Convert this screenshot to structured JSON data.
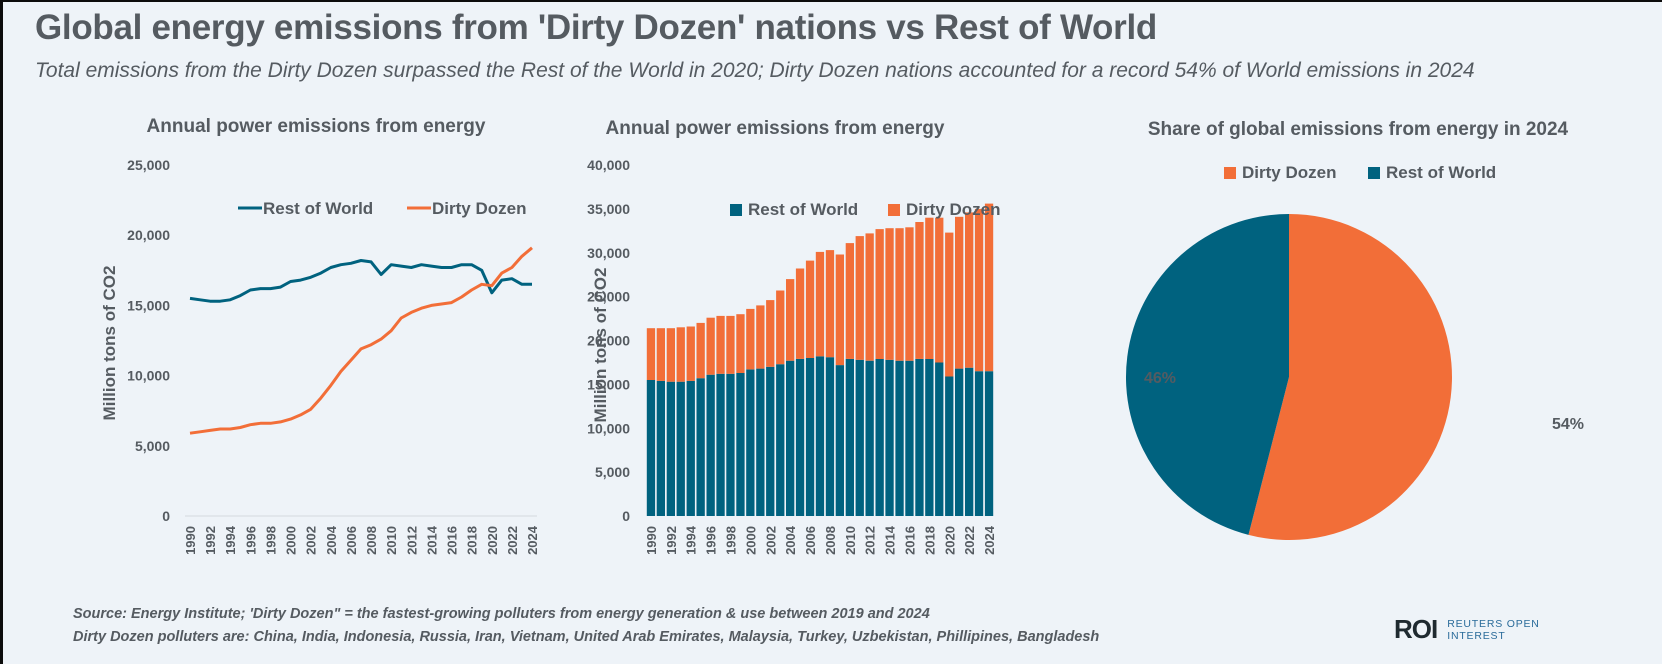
{
  "header": {
    "title": "Global energy emissions from 'Dirty Dozen' nations vs Rest of World",
    "subtitle": "Total emissions from the Dirty Dozen surpassed the Rest of the World in 2020; Dirty Dozen nations accounted for a record 54% of World emissions in 2024"
  },
  "footer": {
    "source": "Source: Energy Institute; 'Dirty Dozen\" = the fastest-growing polluters from energy generation & use between 2019 and 2024",
    "members": "Dirty Dozen polluters are: China, India, Indonesia, Russia, Iran, Vietnam, United Arab Emirates, Malaysia, Turkey, Uzbekistan, Phillipines, Bangladesh",
    "logo_mark": "ROI",
    "logo_line1": "REUTERS OPEN",
    "logo_line2": "INTEREST"
  },
  "colors": {
    "rest_of_world": "#00627f",
    "dirty_dozen": "#f26e38",
    "text": "#555b61",
    "background": "#eef3f8"
  },
  "chart_data": [
    {
      "type": "line",
      "title": "Annual power emissions from energy",
      "xlabel": "",
      "ylabel": "Million tons of CO2",
      "ylim": [
        0,
        25000
      ],
      "yticks": [
        0,
        5000,
        10000,
        15000,
        20000,
        25000
      ],
      "ytick_labels": [
        "0",
        "5,000",
        "10,000",
        "15,000",
        "20,000",
        "25,000"
      ],
      "x": [
        1990,
        1991,
        1992,
        1993,
        1994,
        1995,
        1996,
        1997,
        1998,
        1999,
        2000,
        2001,
        2002,
        2003,
        2004,
        2005,
        2006,
        2007,
        2008,
        2009,
        2010,
        2011,
        2012,
        2013,
        2014,
        2015,
        2016,
        2017,
        2018,
        2019,
        2020,
        2021,
        2022,
        2023,
        2024
      ],
      "xtick_labels": [
        "1990",
        "1992",
        "1994",
        "1996",
        "1998",
        "2000",
        "2002",
        "2004",
        "2006",
        "2008",
        "2010",
        "2012",
        "2014",
        "2016",
        "2018",
        "2020",
        "2022",
        "2024"
      ],
      "legend": "top-center",
      "grid": false,
      "series": [
        {
          "name": "Rest of World",
          "color": "#00627f",
          "values": [
            15500,
            15400,
            15300,
            15300,
            15400,
            15700,
            16100,
            16200,
            16200,
            16300,
            16700,
            16800,
            17000,
            17300,
            17700,
            17900,
            18000,
            18200,
            18100,
            17200,
            17900,
            17800,
            17700,
            17900,
            17800,
            17700,
            17700,
            17900,
            17900,
            17500,
            15900,
            16800,
            16900,
            16500,
            16500
          ]
        },
        {
          "name": "Dirty Dozen",
          "color": "#f26e38",
          "values": [
            5900,
            6000,
            6100,
            6200,
            6200,
            6300,
            6500,
            6600,
            6600,
            6700,
            6900,
            7200,
            7600,
            8400,
            9300,
            10300,
            11100,
            11900,
            12200,
            12600,
            13200,
            14100,
            14500,
            14800,
            15000,
            15100,
            15200,
            15600,
            16100,
            16500,
            16400,
            17300,
            17700,
            18500,
            19100
          ]
        }
      ]
    },
    {
      "type": "bar",
      "stacked": true,
      "title": "Annual power emissions from energy",
      "xlabel": "",
      "ylabel": "Million tons of CO2",
      "ylim": [
        0,
        40000
      ],
      "yticks": [
        0,
        5000,
        10000,
        15000,
        20000,
        25000,
        30000,
        35000,
        40000
      ],
      "ytick_labels": [
        "0",
        "5,000",
        "10,000",
        "15,000",
        "20,000",
        "25,000",
        "30,000",
        "35,000",
        "40,000"
      ],
      "categories": [
        1990,
        1991,
        1992,
        1993,
        1994,
        1995,
        1996,
        1997,
        1998,
        1999,
        2000,
        2001,
        2002,
        2003,
        2004,
        2005,
        2006,
        2007,
        2008,
        2009,
        2010,
        2011,
        2012,
        2013,
        2014,
        2015,
        2016,
        2017,
        2018,
        2019,
        2020,
        2021,
        2022,
        2023,
        2024
      ],
      "xtick_labels": [
        "1990",
        "1992",
        "1994",
        "1996",
        "1998",
        "2000",
        "2002",
        "2004",
        "2006",
        "2008",
        "2010",
        "2012",
        "2014",
        "2016",
        "2018",
        "2020",
        "2022",
        "2024"
      ],
      "legend": "top-center",
      "grid": false,
      "series": [
        {
          "name": "Rest of World",
          "color": "#00627f",
          "values": [
            15500,
            15400,
            15300,
            15300,
            15400,
            15700,
            16100,
            16200,
            16200,
            16300,
            16700,
            16800,
            17000,
            17300,
            17700,
            17900,
            18000,
            18200,
            18100,
            17200,
            17900,
            17800,
            17700,
            17900,
            17800,
            17700,
            17700,
            17900,
            17900,
            17500,
            15900,
            16800,
            16900,
            16500,
            16500
          ]
        },
        {
          "name": "Dirty Dozen",
          "color": "#f26e38",
          "values": [
            5900,
            6000,
            6100,
            6200,
            6200,
            6300,
            6500,
            6600,
            6600,
            6700,
            6900,
            7200,
            7600,
            8400,
            9300,
            10300,
            11100,
            11900,
            12200,
            12600,
            13200,
            14100,
            14500,
            14800,
            15000,
            15100,
            15200,
            15600,
            16100,
            16500,
            16400,
            17300,
            17700,
            18500,
            19100
          ]
        }
      ]
    },
    {
      "type": "pie",
      "title": "Share of global emissions from energy in 2024",
      "legend": "top-center",
      "slices": [
        {
          "name": "Dirty Dozen",
          "value": 54,
          "label": "54%",
          "color": "#f26e38"
        },
        {
          "name": "Rest of World",
          "value": 46,
          "label": "46%",
          "color": "#00627f"
        }
      ]
    }
  ]
}
